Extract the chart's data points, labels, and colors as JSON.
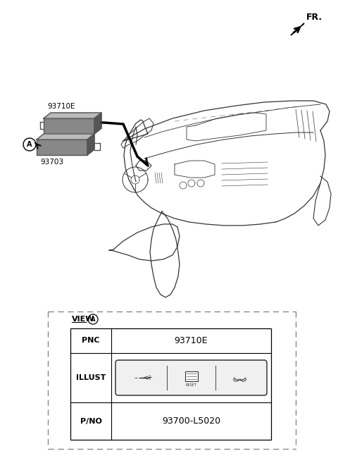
{
  "bg_color": "#ffffff",
  "fr_label": "FR.",
  "label_93710E": "93710E",
  "label_93703": "93703",
  "circle_A_label": "A",
  "view_label": "VIEW",
  "pnc_label": "PNC",
  "pnc_value": "93710E",
  "illust_label": "ILLUST",
  "pno_label": "P/NO",
  "pno_value": "93700-L5020",
  "line_color": "#333333",
  "dark_gray": "#555555",
  "mid_gray": "#888888",
  "light_gray": "#bbbbbb"
}
